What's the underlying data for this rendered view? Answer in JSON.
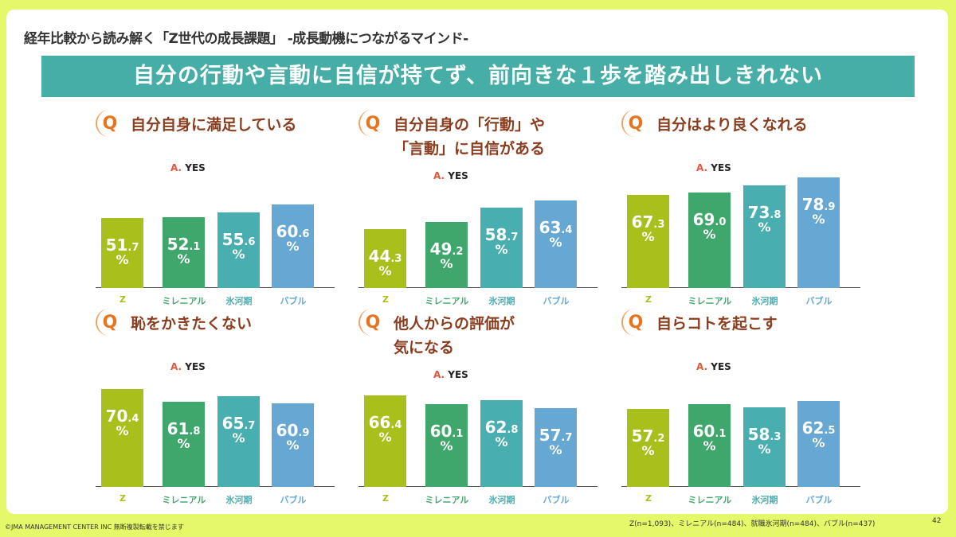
{
  "header": {
    "title": "経年比較から読み解く「Z世代の成長課題」 -成長動機につながるマインド-",
    "banner": "自分の行動や言動に自信が持てず、前向きな１歩を踏み出しきれない"
  },
  "answer_prefix": "A.",
  "answer_label": "YES",
  "q_icon": "Q",
  "colors": {
    "Z": "#a9bf1b",
    "ミレニアル": "#3fa76b",
    "氷河期": "#49aeb0",
    "バブル": "#66a8d3"
  },
  "chart_data": [
    {
      "type": "bar",
      "title": "自分自身に満足している",
      "categories": [
        "Z",
        "ミレニアル",
        "氷河期",
        "バブル"
      ],
      "values": [
        51.7,
        52.1,
        55.6,
        60.6
      ],
      "unit": "%"
    },
    {
      "type": "bar",
      "title": "自分自身の「行動」や\n「言動」に自信がある",
      "categories": [
        "Z",
        "ミレニアル",
        "氷河期",
        "バブル"
      ],
      "values": [
        44.3,
        49.2,
        58.7,
        63.4
      ],
      "unit": "%"
    },
    {
      "type": "bar",
      "title": "自分はより良くなれる",
      "categories": [
        "Z",
        "ミレニアル",
        "氷河期",
        "バブル"
      ],
      "values": [
        67.3,
        69.0,
        73.8,
        78.9
      ],
      "unit": "%"
    },
    {
      "type": "bar",
      "title": "恥をかきたくない",
      "categories": [
        "Z",
        "ミレニアル",
        "氷河期",
        "バブル"
      ],
      "values": [
        70.4,
        61.8,
        65.7,
        60.9
      ],
      "unit": "%"
    },
    {
      "type": "bar",
      "title": "他人からの評価が\n気になる",
      "categories": [
        "Z",
        "ミレニアル",
        "氷河期",
        "バブル"
      ],
      "values": [
        66.4,
        60.1,
        62.8,
        57.7
      ],
      "unit": "%"
    },
    {
      "type": "bar",
      "title": "自らコトを起こす",
      "categories": [
        "Z",
        "ミレニアル",
        "氷河期",
        "バブル"
      ],
      "values": [
        57.2,
        60.1,
        58.3,
        62.5
      ],
      "unit": "%"
    }
  ],
  "footer": {
    "copyright": "©JMA MANAGEMENT CENTER INC  無断複製転載を禁じます",
    "sample": "Z(n=1,093)、ミレニアル(n=484)、就職氷河期(n=484)、バブル(n=437)",
    "page": "42"
  }
}
